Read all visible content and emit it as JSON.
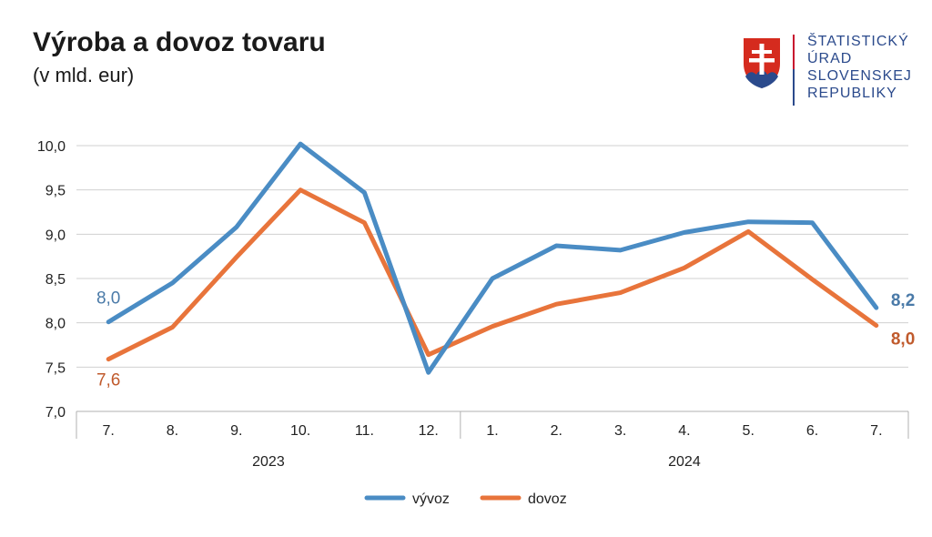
{
  "header": {
    "title": "Výroba a dovoz tovaru",
    "subtitle": "(v mld. eur)"
  },
  "logo": {
    "icon": "slovak-coat-of-arms-icon",
    "lines": [
      "ŠTATISTICKÝ",
      "ÚRAD",
      "SLOVENSKEJ",
      "REPUBLIKY"
    ]
  },
  "chart_data": {
    "type": "line",
    "categories": [
      "7.",
      "8.",
      "9.",
      "10.",
      "11.",
      "12.",
      "1.",
      "2.",
      "3.",
      "4.",
      "5.",
      "6.",
      "7."
    ],
    "groups": [
      {
        "label": "2023",
        "from": 0,
        "to": 5
      },
      {
        "label": "2024",
        "from": 6,
        "to": 12
      }
    ],
    "ylim": [
      7.0,
      10.0
    ],
    "yticks": [
      "7,0",
      "7,5",
      "8,0",
      "8,5",
      "9,0",
      "9,5",
      "10,0"
    ],
    "ytick_values": [
      7.0,
      7.5,
      8.0,
      8.5,
      9.0,
      9.5,
      10.0
    ],
    "grid": true,
    "legend": "bottom-center",
    "series": [
      {
        "name": "vývoz",
        "color": "#4a8cc4",
        "label_color": "#4a7aa8",
        "values": [
          8.01,
          8.45,
          9.08,
          10.02,
          9.47,
          7.44,
          8.5,
          8.87,
          8.82,
          9.02,
          9.14,
          9.13,
          8.17
        ],
        "start_label": "8,0",
        "end_label": "8,2"
      },
      {
        "name": "dovoz",
        "color": "#e8743b",
        "label_color": "#c05a2c",
        "values": [
          7.59,
          7.95,
          8.74,
          9.5,
          9.13,
          7.64,
          7.96,
          8.21,
          8.34,
          8.62,
          9.03,
          8.49,
          7.97
        ],
        "start_label": "7,6",
        "end_label": "8,0"
      }
    ]
  }
}
